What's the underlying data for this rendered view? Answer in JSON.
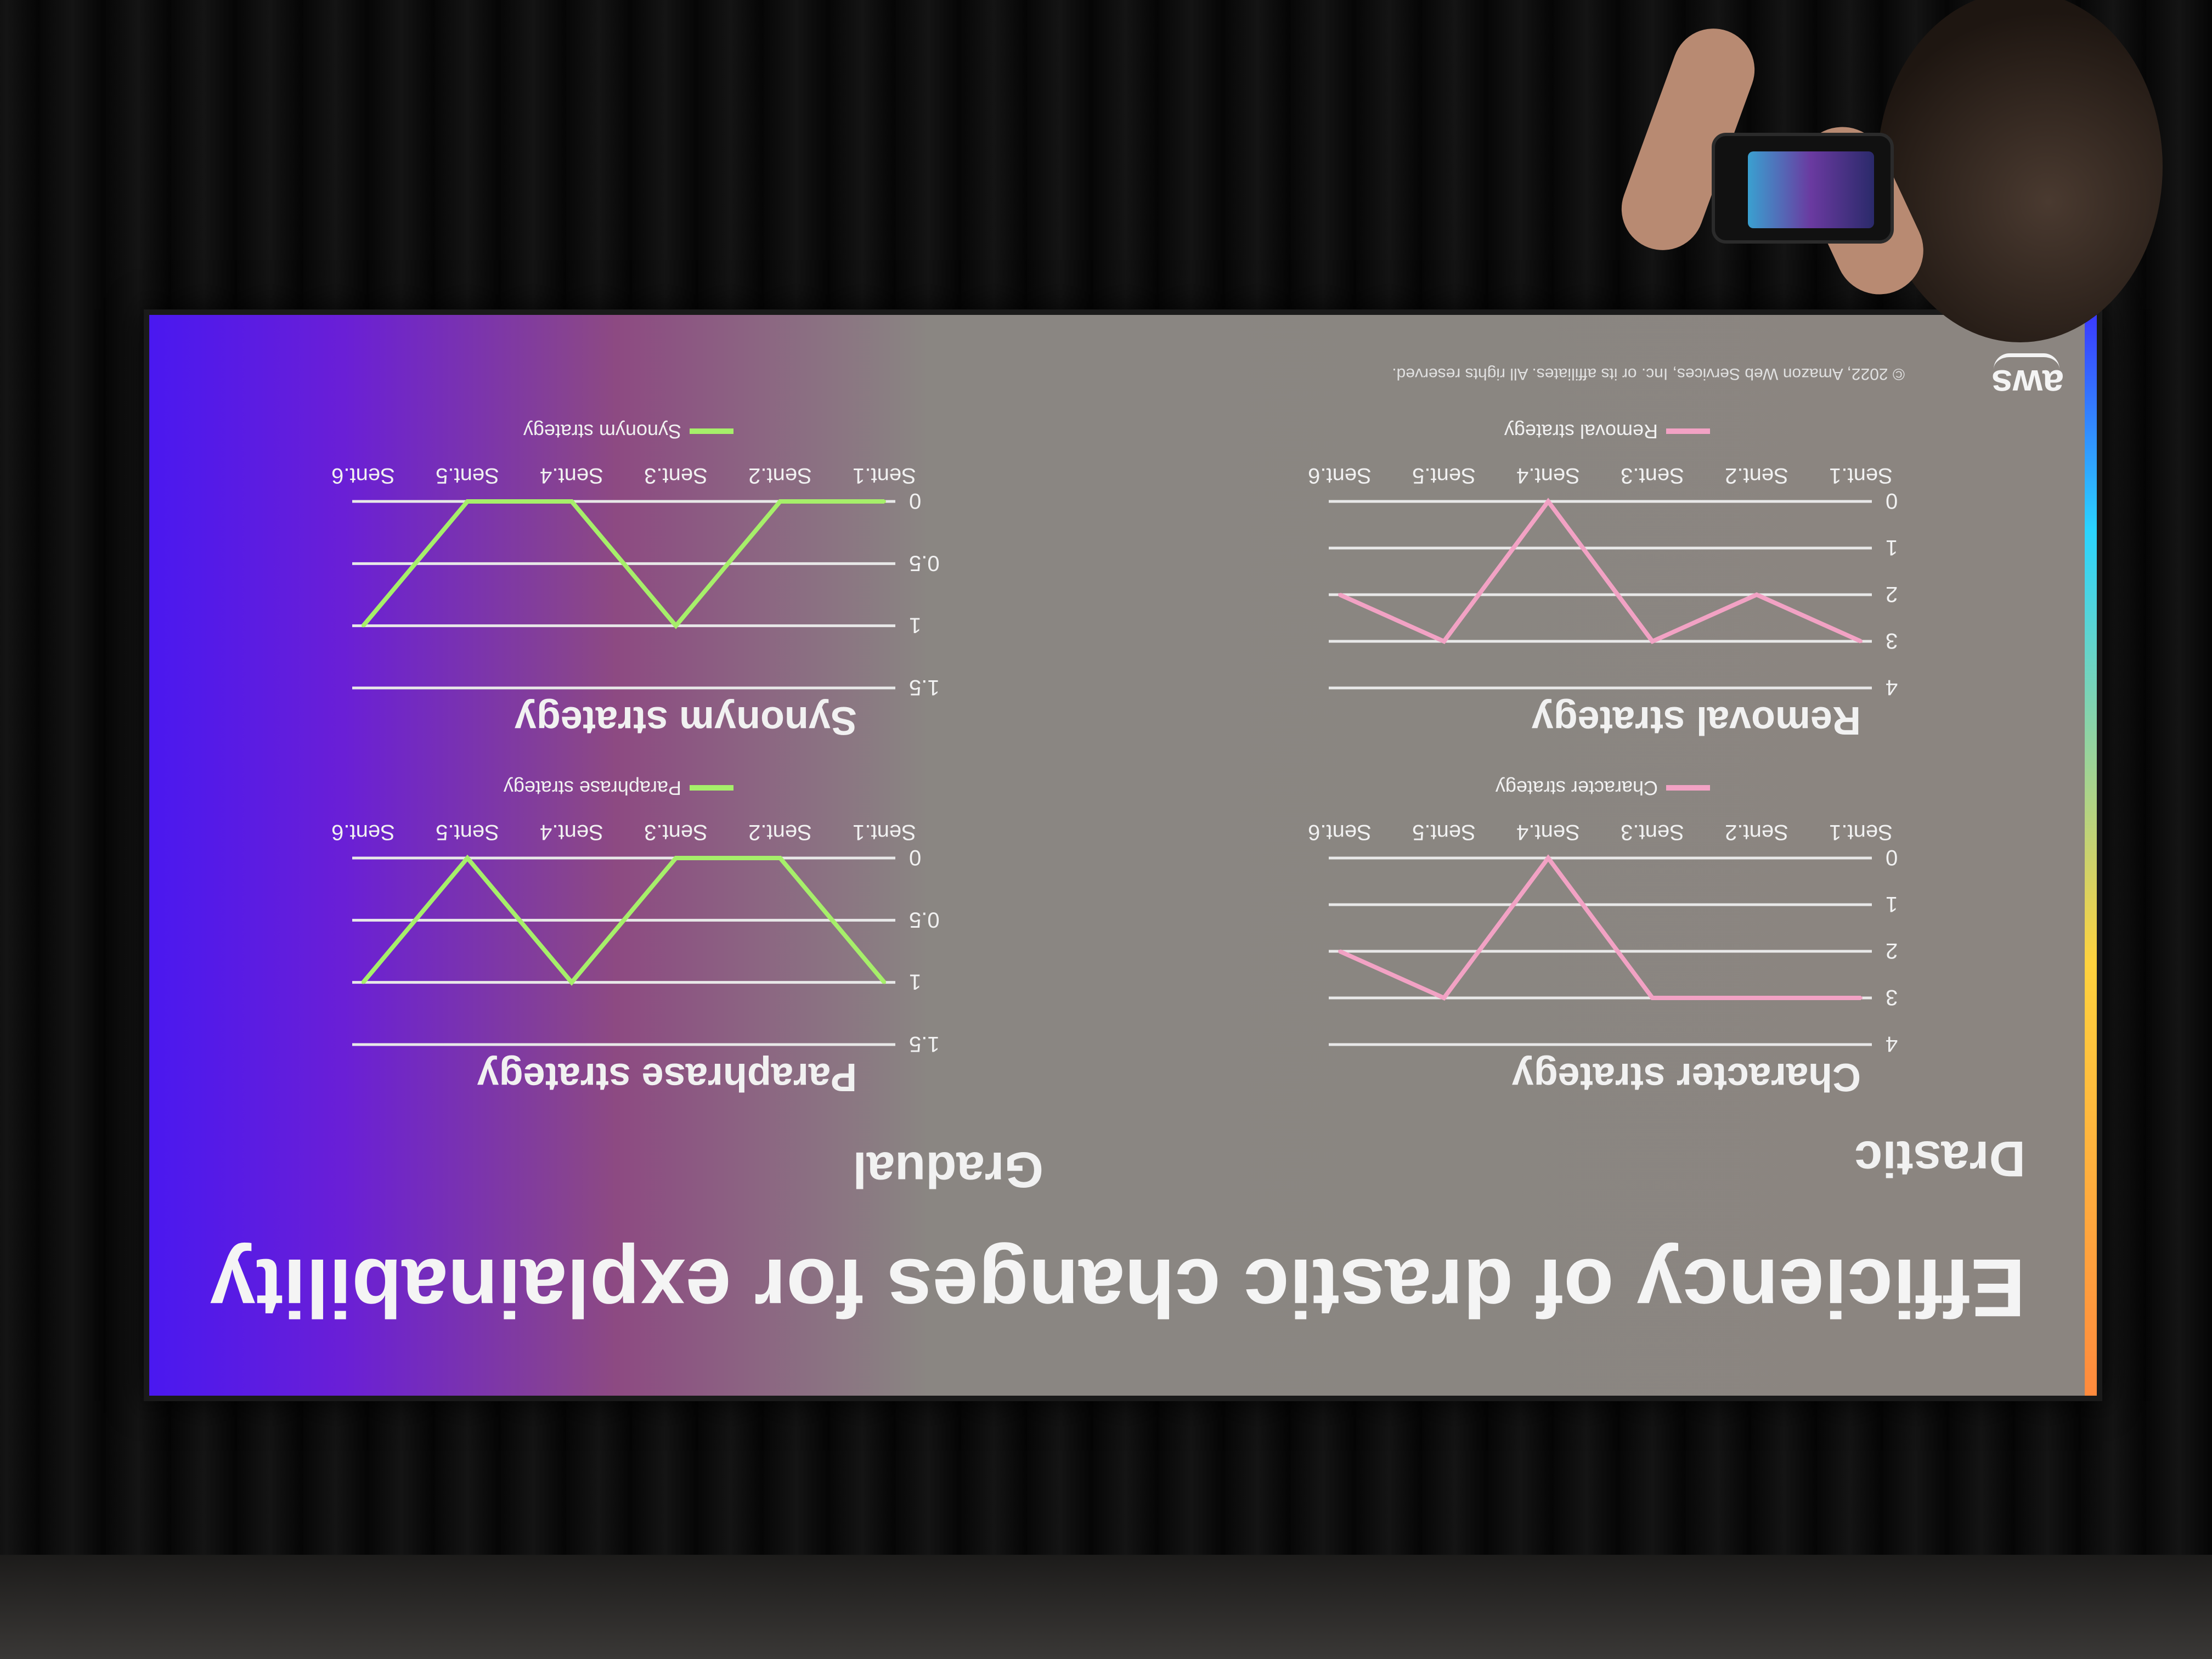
{
  "slide": {
    "title": "Efficiency of drastic changes for explainability",
    "column_drastic": "Drastic",
    "column_gradual": "Gradual",
    "footer": "© 2022, Amazon Web Services, Inc. or its affiliates. All rights reserved.",
    "logo_text": "aws"
  },
  "colors": {
    "pink_series": "#f2a2c4",
    "green_series": "#a6ef6a"
  },
  "chart_data": [
    {
      "id": "character",
      "type": "line",
      "title": "Character strategy",
      "categories": [
        "Sent.1",
        "Sent.2",
        "Sent.3",
        "Sent.4",
        "Sent.5",
        "Sent.6"
      ],
      "yticks": [
        "0",
        "1",
        "2",
        "3",
        "4"
      ],
      "ylim": [
        0,
        4
      ],
      "series": [
        {
          "name": "Character strategy",
          "values": [
            3,
            3,
            3,
            0,
            3,
            2
          ]
        }
      ],
      "legend": "bottom",
      "grid": true
    },
    {
      "id": "paraphrase",
      "type": "line",
      "title": "Paraphrase strategy",
      "categories": [
        "Sent.1",
        "Sent.2",
        "Sent.3",
        "Sent.4",
        "Sent.5",
        "Sent.6"
      ],
      "yticks": [
        "0",
        "0.5",
        "1",
        "1.5"
      ],
      "ylim": [
        0,
        1.5
      ],
      "series": [
        {
          "name": "Paraphrase strategy",
          "values": [
            1,
            0,
            0,
            1,
            0,
            1
          ]
        }
      ],
      "legend": "bottom",
      "grid": true
    },
    {
      "id": "removal",
      "type": "line",
      "title": "Removal strategy",
      "categories": [
        "Sent.1",
        "Sent.2",
        "Sent.3",
        "Sent.4",
        "Sent.5",
        "Sent.6"
      ],
      "yticks": [
        "0",
        "1",
        "2",
        "3",
        "4"
      ],
      "ylim": [
        0,
        4
      ],
      "series": [
        {
          "name": "Removal strategy",
          "values": [
            3,
            2,
            3,
            0,
            3,
            2
          ]
        }
      ],
      "legend": "bottom",
      "grid": true
    },
    {
      "id": "synonym",
      "type": "line",
      "title": "Synonym strategy",
      "categories": [
        "Sent.1",
        "Sent.2",
        "Sent.3",
        "Sent.4",
        "Sent.5",
        "Sent.6"
      ],
      "yticks": [
        "0",
        "0.5",
        "1",
        "1.5"
      ],
      "ylim": [
        0,
        1.5
      ],
      "series": [
        {
          "name": "Synonym strategy",
          "values": [
            0,
            0,
            1,
            0,
            0,
            1
          ]
        }
      ],
      "legend": "bottom",
      "grid": true
    }
  ]
}
